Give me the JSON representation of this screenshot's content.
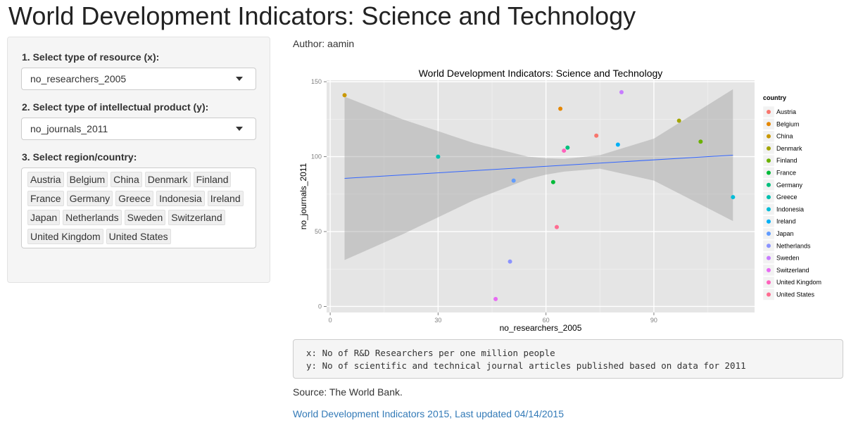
{
  "page_title": "World Development Indicators: Science and Technology",
  "sidebar": {
    "x_label": "1. Select type of resource (x):",
    "x_value": "no_researchers_2005",
    "y_label": "2. Select type of intellectual product (y):",
    "y_value": "no_journals_2011",
    "region_label": "3. Select region/country:",
    "regions": [
      "Austria",
      "Belgium",
      "China",
      "Denmark",
      "Finland",
      "France",
      "Germany",
      "Greece",
      "Indonesia",
      "Ireland",
      "Japan",
      "Netherlands",
      "Sweden",
      "Switzerland",
      "United Kingdom",
      "United States"
    ]
  },
  "author": "Author: aamin",
  "description": {
    "line1": "x: No of R&D Researchers per one million people",
    "line2": "y: No of scientific and technical journal articles published based on data for 2011"
  },
  "source": "Source: The World Bank.",
  "link_text": "World Development Indicators 2015, Last updated 04/14/2015",
  "chart_data": {
    "type": "scatter",
    "title": "World Development Indicators: Science and Technology",
    "xlabel": "no_researchers_2005",
    "ylabel": "no_journals_2011",
    "xlim": [
      -1,
      118
    ],
    "ylim": [
      -4,
      151
    ],
    "xticks": [
      0,
      30,
      60,
      90
    ],
    "yticks": [
      0,
      50,
      100,
      150
    ],
    "legend_title": "country",
    "legend_position": "right",
    "grid": true,
    "series": [
      {
        "name": "Austria",
        "color": "#F8766D",
        "x": 74,
        "y": 114
      },
      {
        "name": "Belgium",
        "color": "#E58700",
        "x": 64,
        "y": 132
      },
      {
        "name": "China",
        "color": "#C99800",
        "x": 4,
        "y": 141
      },
      {
        "name": "Denmark",
        "color": "#A3A500",
        "x": 97,
        "y": 124
      },
      {
        "name": "Finland",
        "color": "#6BB100",
        "x": 103,
        "y": 110
      },
      {
        "name": "France",
        "color": "#00BA38",
        "x": 62,
        "y": 83
      },
      {
        "name": "Germany",
        "color": "#00BF7D",
        "x": 66,
        "y": 106
      },
      {
        "name": "Greece",
        "color": "#00C0AF",
        "x": 30,
        "y": 100
      },
      {
        "name": "Indonesia",
        "color": "#00BCD8",
        "x": 112,
        "y": 73
      },
      {
        "name": "Ireland",
        "color": "#00B0F6",
        "x": 80,
        "y": 108
      },
      {
        "name": "Japan",
        "color": "#619CFF",
        "x": 51,
        "y": 84
      },
      {
        "name": "Netherlands",
        "color": "#8B93FF",
        "x": 50,
        "y": 30
      },
      {
        "name": "Sweden",
        "color": "#C77CFF",
        "x": 81,
        "y": 143
      },
      {
        "name": "Switzerland",
        "color": "#E76BF3",
        "x": 46,
        "y": 5
      },
      {
        "name": "United Kingdom",
        "color": "#FF62BC",
        "x": 65,
        "y": 104
      },
      {
        "name": "United States",
        "color": "#FF6C91",
        "x": 63,
        "y": 53
      }
    ],
    "fit_line": {
      "x": [
        4,
        112
      ],
      "y": [
        85.5,
        101
      ]
    },
    "confidence_band": {
      "x": [
        4,
        20,
        40,
        55,
        60,
        65,
        75,
        90,
        112
      ],
      "upper": [
        140,
        125,
        109,
        100,
        99,
        98.5,
        101,
        112,
        145
      ],
      "lower": [
        31,
        48,
        71,
        85,
        88,
        90,
        92,
        84,
        57
      ]
    }
  }
}
